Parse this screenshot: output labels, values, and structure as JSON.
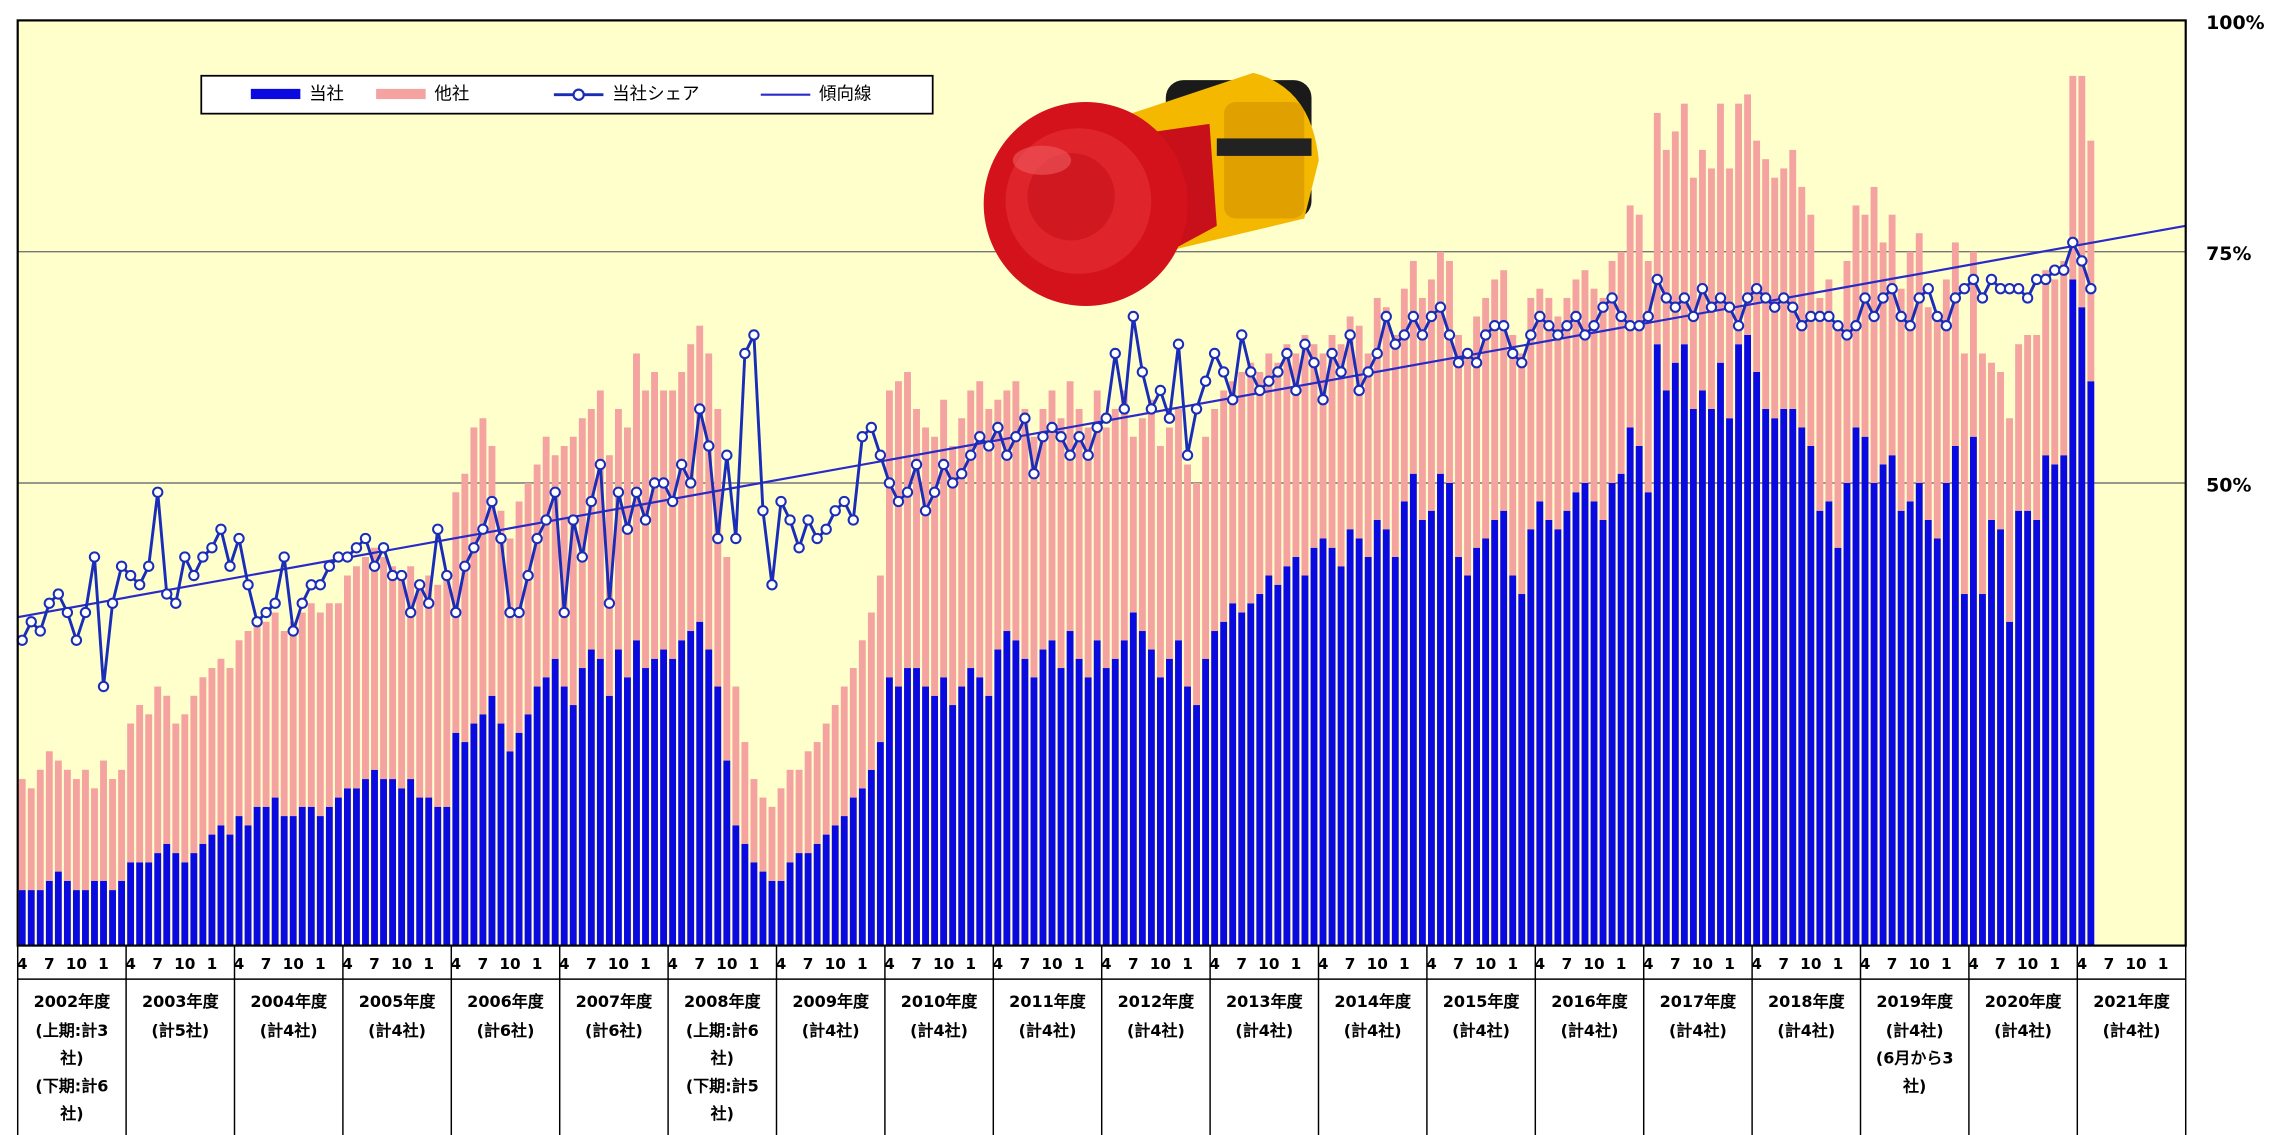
{
  "chart_data": {
    "type": "bar",
    "categories": [
      "4",
      null,
      null,
      "7",
      null,
      null,
      "10",
      null,
      null,
      "1",
      null,
      null,
      "4",
      null,
      null,
      "7",
      null,
      null,
      "10",
      null,
      null,
      "1",
      null,
      null,
      "4",
      null,
      null,
      "7",
      null,
      null,
      "10",
      null,
      null,
      "1",
      null,
      null,
      "4",
      null,
      null,
      "7",
      null,
      null,
      "10",
      null,
      null,
      "1",
      null,
      null,
      "4",
      null,
      null,
      "7",
      null,
      null,
      "10",
      null,
      null,
      "1",
      null,
      null,
      "4",
      null,
      null,
      "7",
      null,
      null,
      "10",
      null,
      null,
      "1",
      null,
      null,
      "4",
      null,
      null,
      "7",
      null,
      null,
      "10",
      null,
      null,
      "1",
      null,
      null,
      "4",
      null,
      null,
      "7",
      null,
      null,
      "10",
      null,
      null,
      "1",
      null,
      null,
      "4",
      null,
      null,
      "7",
      null,
      null,
      "10",
      null,
      null,
      "1",
      null,
      null,
      "4",
      null,
      null,
      "7",
      null,
      null,
      "10",
      null,
      null,
      "1",
      null,
      null,
      "4",
      null,
      null,
      "7",
      null,
      null,
      "10",
      null,
      null,
      "1",
      null,
      null,
      "4",
      null,
      null,
      "7",
      null,
      null,
      "10",
      null,
      null,
      "1",
      null,
      null,
      "4",
      null,
      null,
      "7",
      null,
      null,
      "10",
      null,
      null,
      "1",
      null,
      null,
      "4",
      null,
      null,
      "7",
      null,
      null,
      "10",
      null,
      null,
      "1",
      null,
      null,
      "4",
      null,
      null,
      "7",
      null,
      null,
      "10",
      null,
      null,
      "1",
      null,
      null,
      "4",
      null,
      null,
      "7",
      null,
      null,
      "10",
      null,
      null,
      "1",
      null,
      null,
      "4",
      null,
      null,
      "7",
      null,
      null,
      "10",
      null,
      null,
      "1",
      null,
      null,
      "4",
      null,
      null,
      "7",
      null,
      null,
      "10",
      null,
      null,
      "1",
      null,
      null,
      "4",
      null,
      null,
      "7",
      null,
      null,
      "10",
      null,
      null,
      "1",
      null,
      null,
      "4",
      null,
      null,
      "7",
      null,
      null,
      "10",
      null,
      null,
      "1",
      null,
      null
    ],
    "fiscal_years": [
      {
        "label": "2002年度",
        "notes": [
          "(上期:計3",
          "社)",
          "(下期:計6",
          "社)"
        ]
      },
      {
        "label": "2003年度",
        "notes": [
          "(計5社)"
        ]
      },
      {
        "label": "2004年度",
        "notes": [
          "(計4社)"
        ]
      },
      {
        "label": "2005年度",
        "notes": [
          "(計4社)"
        ]
      },
      {
        "label": "2006年度",
        "notes": [
          "(計6社)"
        ]
      },
      {
        "label": "2007年度",
        "notes": [
          "(計6社)"
        ]
      },
      {
        "label": "2008年度",
        "notes": [
          "(上期:計6",
          "社)",
          "(下期:計5",
          "社)"
        ]
      },
      {
        "label": "2009年度",
        "notes": [
          "(計4社)"
        ]
      },
      {
        "label": "2010年度",
        "notes": [
          "(計4社)"
        ]
      },
      {
        "label": "2011年度",
        "notes": [
          "(計4社)"
        ]
      },
      {
        "label": "2012年度",
        "notes": [
          "(計4社)"
        ]
      },
      {
        "label": "2013年度",
        "notes": [
          "(計4社)"
        ]
      },
      {
        "label": "2014年度",
        "notes": [
          "(計4社)"
        ]
      },
      {
        "label": "2015年度",
        "notes": [
          "(計4社)"
        ]
      },
      {
        "label": "2016年度",
        "notes": [
          "(計4社)"
        ]
      },
      {
        "label": "2017年度",
        "notes": [
          "(計4社)"
        ]
      },
      {
        "label": "2018年度",
        "notes": [
          "(計4社)"
        ]
      },
      {
        "label": "2019年度",
        "notes": [
          "(計4社)",
          "(6月から3",
          "社)"
        ]
      },
      {
        "label": "2020年度",
        "notes": [
          "(計4社)"
        ]
      },
      {
        "label": "2021年度",
        "notes": [
          "(計4社)"
        ]
      }
    ],
    "series": [
      {
        "name": "当社",
        "color": "#0a0ae0",
        "values": [
          6,
          6,
          6,
          7,
          8,
          7,
          6,
          6,
          7,
          7,
          6,
          7,
          9,
          9,
          9,
          10,
          11,
          10,
          9,
          10,
          11,
          12,
          13,
          12,
          14,
          13,
          15,
          15,
          16,
          14,
          14,
          15,
          15,
          14,
          15,
          16,
          17,
          17,
          18,
          19,
          18,
          18,
          17,
          18,
          16,
          16,
          15,
          15,
          23,
          22,
          24,
          25,
          27,
          24,
          21,
          23,
          25,
          28,
          29,
          31,
          28,
          26,
          30,
          32,
          31,
          27,
          32,
          29,
          33,
          30,
          31,
          32,
          31,
          33,
          34,
          35,
          32,
          28,
          20,
          13,
          11,
          9,
          8,
          7,
          7,
          9,
          10,
          10,
          11,
          12,
          13,
          14,
          16,
          17,
          19,
          22,
          29,
          28,
          30,
          30,
          28,
          27,
          29,
          26,
          28,
          30,
          29,
          27,
          32,
          34,
          33,
          31,
          29,
          32,
          33,
          30,
          34,
          31,
          29,
          33,
          30,
          31,
          33,
          36,
          34,
          32,
          29,
          31,
          33,
          28,
          26,
          31,
          34,
          35,
          37,
          36,
          37,
          38,
          40,
          39,
          41,
          42,
          40,
          43,
          44,
          43,
          41,
          45,
          44,
          42,
          46,
          45,
          42,
          48,
          51,
          46,
          47,
          51,
          50,
          42,
          40,
          43,
          44,
          46,
          47,
          40,
          38,
          45,
          48,
          46,
          45,
          47,
          49,
          50,
          48,
          46,
          50,
          51,
          56,
          54,
          49,
          65,
          60,
          63,
          65,
          58,
          60,
          58,
          63,
          57,
          65,
          66,
          62,
          58,
          57,
          58,
          58,
          56,
          54,
          47,
          48,
          43,
          50,
          56,
          55,
          50,
          52,
          53,
          47,
          48,
          50,
          46,
          44,
          50,
          54,
          38,
          55,
          38,
          46,
          45,
          35,
          47,
          47,
          46,
          53,
          52,
          53,
          72,
          69,
          61,
          null,
          null,
          null,
          null,
          null,
          null,
          null,
          null,
          null,
          null
        ]
      },
      {
        "name": "他社",
        "color": "#f4a3a0",
        "values": [
          12,
          11,
          13,
          14,
          12,
          12,
          12,
          13,
          10,
          13,
          12,
          12,
          15,
          17,
          16,
          18,
          16,
          14,
          16,
          17,
          18,
          18,
          18,
          18,
          19,
          21,
          20,
          20,
          20,
          20,
          21,
          21,
          22,
          22,
          22,
          21,
          23,
          24,
          24,
          24,
          24,
          23,
          23,
          23,
          23,
          24,
          24,
          25,
          26,
          29,
          32,
          32,
          27,
          23,
          23,
          25,
          25,
          24,
          26,
          22,
          26,
          29,
          27,
          26,
          29,
          26,
          26,
          27,
          31,
          30,
          31,
          28,
          29,
          29,
          31,
          32,
          32,
          30,
          22,
          15,
          11,
          9,
          8,
          8,
          10,
          10,
          9,
          11,
          11,
          12,
          13,
          14,
          14,
          16,
          17,
          18,
          31,
          33,
          32,
          28,
          28,
          28,
          30,
          28,
          29,
          30,
          32,
          31,
          27,
          26,
          28,
          27,
          26,
          26,
          27,
          27,
          27,
          27,
          27,
          27,
          26,
          27,
          27,
          19,
          23,
          27,
          25,
          25,
          25,
          24,
          24,
          24,
          24,
          25,
          24,
          26,
          26,
          24,
          24,
          24,
          24,
          22,
          26,
          22,
          20,
          23,
          24,
          23,
          23,
          22,
          24,
          24,
          24,
          23,
          23,
          24,
          25,
          24,
          24,
          24,
          24,
          25,
          26,
          26,
          26,
          26,
          26,
          25,
          23,
          24,
          23,
          23,
          23,
          23,
          23,
          24,
          24,
          24,
          24,
          25,
          25,
          25,
          26,
          25,
          26,
          25,
          26,
          26,
          28,
          27,
          26,
          26,
          25,
          27,
          26,
          26,
          28,
          26,
          25,
          23,
          24,
          24,
          24,
          24,
          24,
          32,
          24,
          26,
          24,
          27,
          27,
          23,
          24,
          22,
          22,
          26,
          20,
          26,
          17,
          17,
          22,
          18,
          19,
          20,
          20,
          20,
          21,
          22,
          25,
          26,
          null,
          null,
          null,
          null,
          null,
          null,
          null,
          null,
          null,
          null
        ]
      },
      {
        "name": "当社シェア",
        "color": "#1a2db8",
        "axis": "y2",
        "values": [
          33,
          35,
          34,
          37,
          38,
          36,
          33,
          36,
          42,
          28,
          37,
          41,
          40,
          39,
          41,
          49,
          38,
          37,
          42,
          40,
          42,
          43,
          45,
          41,
          44,
          39,
          35,
          36,
          37,
          42,
          34,
          37,
          39,
          39,
          41,
          42,
          42,
          43,
          44,
          41,
          43,
          40,
          40,
          36,
          39,
          37,
          45,
          40,
          36,
          41,
          43,
          45,
          48,
          44,
          36,
          36,
          40,
          44,
          46,
          49,
          36,
          46,
          42,
          48,
          52,
          37,
          49,
          45,
          49,
          46,
          50,
          50,
          48,
          52,
          50,
          58,
          54,
          44,
          53,
          44,
          64,
          66,
          47,
          39,
          48,
          46,
          43,
          46,
          44,
          45,
          47,
          48,
          46,
          55,
          56,
          53,
          50,
          48,
          49,
          52,
          47,
          49,
          52,
          50,
          51,
          53,
          55,
          54,
          56,
          53,
          55,
          57,
          51,
          55,
          56,
          55,
          53,
          55,
          53,
          56,
          57,
          64,
          58,
          68,
          62,
          58,
          60,
          57,
          65,
          53,
          58,
          61,
          64,
          62,
          59,
          66,
          62,
          60,
          61,
          62,
          64,
          60,
          65,
          63,
          59,
          64,
          62,
          66,
          60,
          62,
          64,
          68,
          65,
          66,
          68,
          66,
          68,
          69,
          66,
          63,
          64,
          63,
          66,
          67,
          67,
          64,
          63,
          66,
          68,
          67,
          66,
          67,
          68,
          66,
          67,
          69,
          70,
          68,
          67,
          67,
          68,
          72,
          70,
          69,
          70,
          68,
          71,
          69,
          70,
          69,
          67,
          70,
          71,
          70,
          69,
          70,
          69,
          67,
          68,
          68,
          68,
          67,
          66,
          67,
          70,
          68,
          70,
          71,
          68,
          67,
          70,
          71,
          68,
          67,
          70,
          71,
          72,
          70,
          72,
          71,
          71,
          71,
          70,
          72,
          72,
          73,
          73,
          76,
          74,
          71,
          null,
          null,
          null,
          null,
          null,
          null,
          null,
          null,
          null,
          null
        ]
      }
    ],
    "trend_line": {
      "name": "傾向線",
      "color": "#2a2ac8",
      "start": 35.5,
      "end": 77.8
    },
    "ylim": [
      0,
      100
    ],
    "y2lim": [
      0,
      100
    ],
    "y2ticks": [
      {
        "value": 100,
        "label": "100%"
      },
      {
        "value": 75,
        "label": "75%"
      },
      {
        "value": 50,
        "label": "50%"
      }
    ],
    "grid": true
  }
}
